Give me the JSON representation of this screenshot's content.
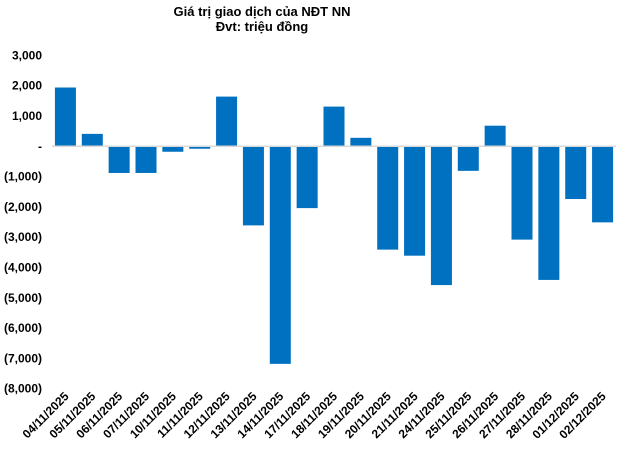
{
  "chart_data": {
    "type": "bar",
    "title": "Giá trị giao dịch của NĐT NN",
    "subtitle": "Đvt: triệu đồng",
    "xlabel": "",
    "ylabel": "",
    "ylim": [
      -8000,
      3000
    ],
    "yticks": [
      3000,
      2000,
      1000,
      0,
      -1000,
      -2000,
      -3000,
      -4000,
      -5000,
      -6000,
      -7000,
      -8000
    ],
    "ytick_labels": [
      "3,000",
      "2,000",
      "1,000",
      "-",
      "(1,000)",
      "(2,000)",
      "(3,000)",
      "(4,000)",
      "(5,000)",
      "(6,000)",
      "(7,000)",
      "(8,000)"
    ],
    "grid": false,
    "bar_color": "#0070C0",
    "categories": [
      "04/11/2025",
      "05/11/2025",
      "06/11/2025",
      "07/11/2025",
      "10/11/2025",
      "11/11/2025",
      "12/11/2025",
      "13/11/2025",
      "14/11/2025",
      "17/11/2025",
      "18/11/2025",
      "19/11/2025",
      "20/11/2025",
      "21/11/2025",
      "24/11/2025",
      "25/11/2025",
      "26/11/2025",
      "27/11/2025",
      "28/11/2025",
      "01/12/2025",
      "02/12/2025"
    ],
    "values": [
      1940,
      410,
      -880,
      -880,
      -180,
      -80,
      1640,
      -2610,
      -7180,
      -2040,
      1310,
      280,
      -3410,
      -3610,
      -4580,
      -810,
      680,
      -3080,
      -4410,
      -1740,
      -2510
    ]
  }
}
